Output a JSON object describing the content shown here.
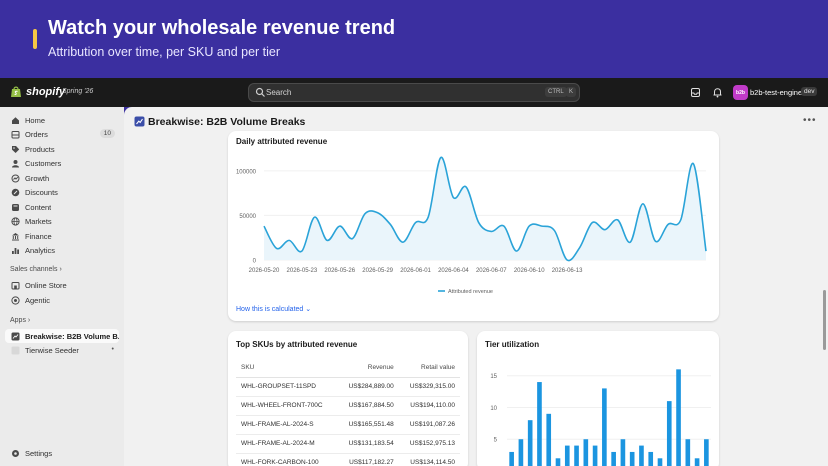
{
  "banner": {
    "title": "Watch your wholesale revenue trend",
    "subtitle": "Attribution over time, per SKU and per tier"
  },
  "topbar": {
    "logo_text": "shopify",
    "edition": "Spring '26",
    "search_placeholder": "Search",
    "kbd_ctrl": "CTRL",
    "kbd_k": "K",
    "store_initials": "b2b",
    "store_name": "b2b-test-engine",
    "store_badge": "dev"
  },
  "sidebar": {
    "items": [
      {
        "label": "Home",
        "icon": "home-icon"
      },
      {
        "label": "Orders",
        "icon": "orders-icon",
        "count": "10"
      },
      {
        "label": "Products",
        "icon": "tag-icon"
      },
      {
        "label": "Customers",
        "icon": "person-icon"
      },
      {
        "label": "Growth",
        "icon": "growth-icon"
      },
      {
        "label": "Discounts",
        "icon": "discount-icon"
      },
      {
        "label": "Content",
        "icon": "content-icon"
      },
      {
        "label": "Markets",
        "icon": "globe-icon"
      },
      {
        "label": "Finance",
        "icon": "bank-icon"
      },
      {
        "label": "Analytics",
        "icon": "bar-chart-icon"
      }
    ],
    "sales_channels_label": "Sales channels",
    "channels": [
      {
        "label": "Online Store",
        "icon": "store-icon"
      },
      {
        "label": "Agentic",
        "icon": "agentic-icon"
      }
    ],
    "apps_label": "Apps",
    "apps": [
      {
        "label": "Breakwise: B2B Volume B...",
        "icon": "app-icon"
      },
      {
        "label": "Tierwise Seeder",
        "icon": "app-icon"
      }
    ],
    "settings_label": "Settings"
  },
  "app": {
    "title": "Breakwise: B2B Volume Breaks"
  },
  "daily_chart": {
    "title": "Daily attributed revenue",
    "link_label": "How this is calculated",
    "legend_label": "Attributed revenue"
  },
  "sku_table": {
    "title": "Top SKUs by attributed revenue",
    "columns": [
      "SKU",
      "Revenue",
      "Retail value"
    ],
    "rows": [
      [
        "WHL-GROUPSET-11SPD",
        "US$284,889.00",
        "US$329,315.00"
      ],
      [
        "WHL-WHEEL-FRONT-700C",
        "US$167,884.50",
        "US$194,110.00"
      ],
      [
        "WHL-FRAME-AL-2024-S",
        "US$165,551.48",
        "US$191,087.26"
      ],
      [
        "WHL-FRAME-AL-2024-M",
        "US$131,183.54",
        "US$152,975.13"
      ],
      [
        "WHL-FORK-CARBON-100",
        "US$117,182.27",
        "US$134,114.50"
      ]
    ]
  },
  "tier_chart": {
    "title": "Tier utilization"
  },
  "chart_data": [
    {
      "type": "area",
      "title": "Daily attributed revenue",
      "series": [
        {
          "name": "Attributed revenue",
          "values": [
            38000,
            13000,
            22000,
            10000,
            48000,
            22000,
            38000,
            24000,
            52000,
            53000,
            40000,
            20000,
            42000,
            48000,
            115000,
            70000,
            82000,
            42000,
            32000,
            38000,
            10000,
            38000,
            38000,
            33000,
            0,
            14000,
            42000,
            34000,
            45000,
            20000,
            63000,
            21000,
            40000,
            45000,
            108000,
            10000
          ]
        }
      ],
      "x_start": "2026-05-20",
      "x_ticks": [
        "2026-05-20",
        "2026-05-23",
        "2026-05-26",
        "2026-05-29",
        "2026-06-01",
        "2026-06-04",
        "2026-06-07",
        "2026-06-10",
        "2026-06-13"
      ],
      "y_ticks": [
        0,
        50000,
        100000
      ],
      "ylim": [
        0,
        120000
      ],
      "color": "#2aa3d8",
      "legend": "bottom-center"
    },
    {
      "type": "bar",
      "title": "Tier utilization",
      "y_ticks": [
        5,
        10,
        15
      ],
      "ylim": [
        0,
        17
      ],
      "values": [
        3,
        5,
        8,
        14,
        9,
        2,
        4,
        4,
        5,
        4,
        13,
        3,
        5,
        3,
        4,
        3,
        2,
        11,
        16,
        5,
        2,
        5
      ],
      "color": "#1b95e0"
    }
  ]
}
